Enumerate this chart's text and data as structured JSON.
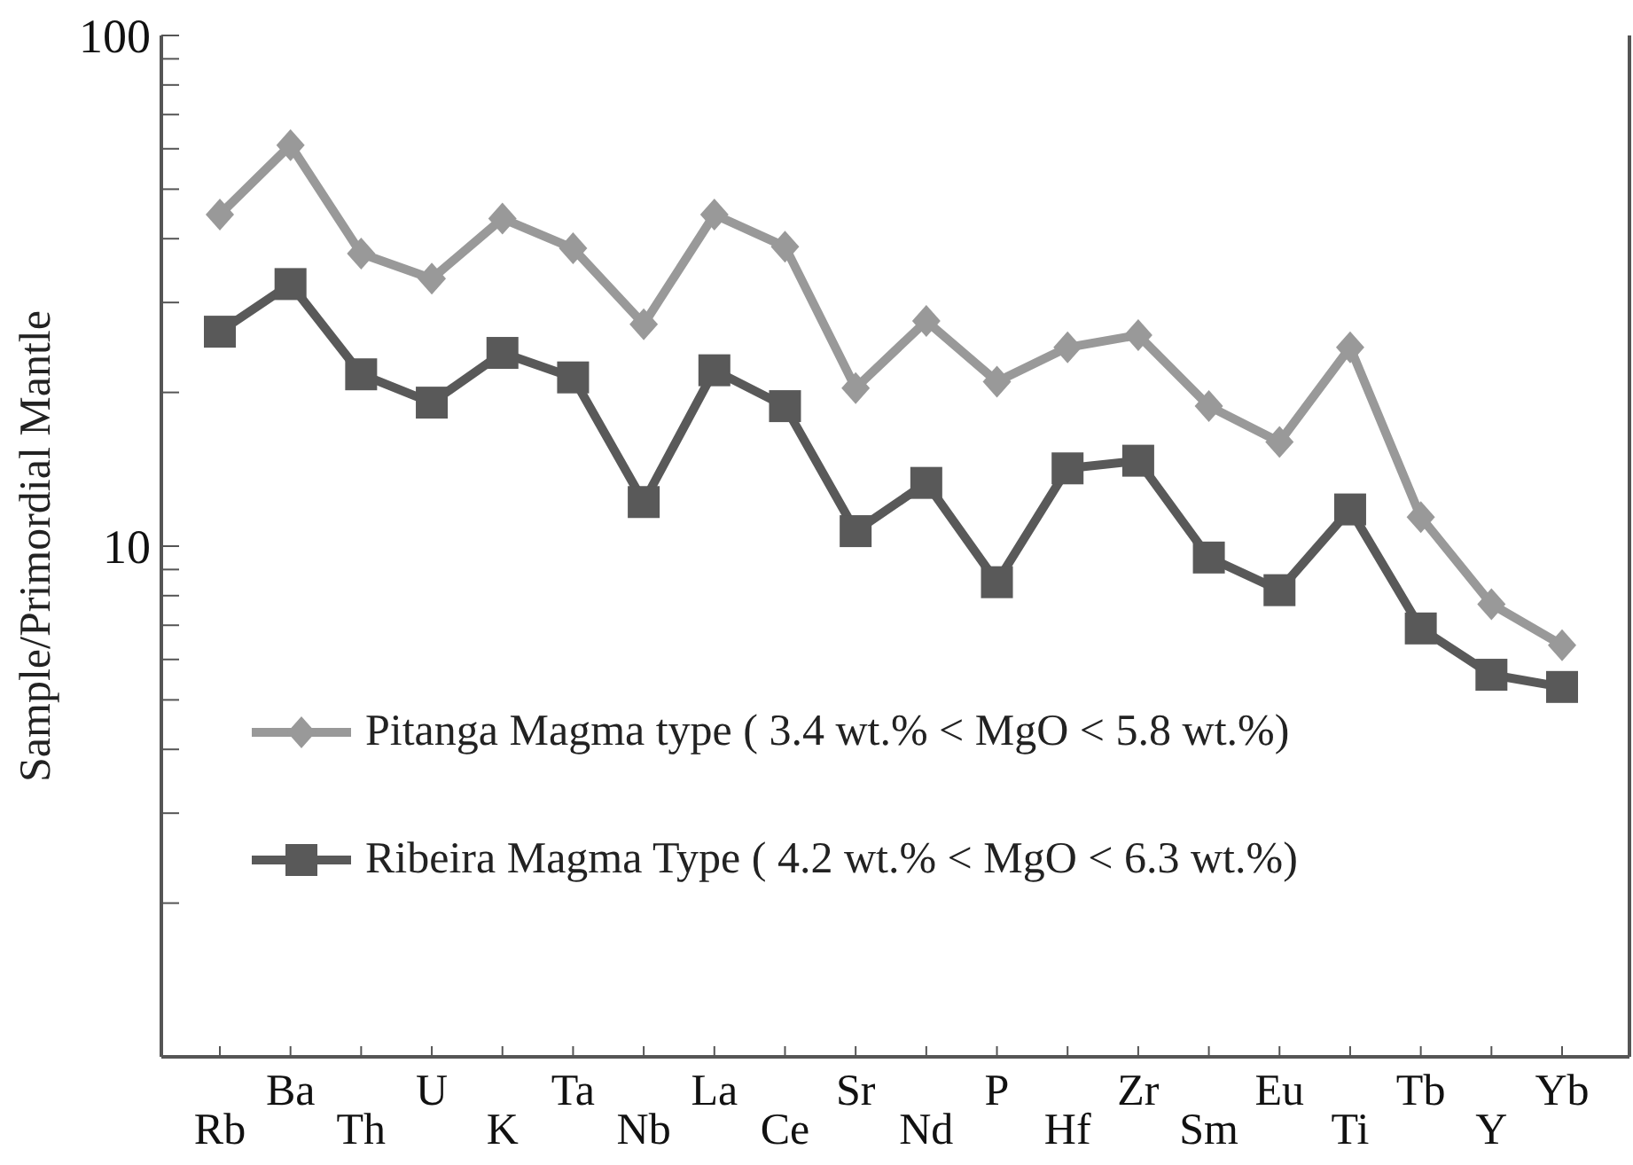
{
  "chart_data": {
    "type": "line",
    "ylabel": "Sample/Primordial Mantle",
    "log": "y",
    "ylim": [
      1,
      100
    ],
    "yticks": [
      {
        "value": 2,
        "label": null
      },
      {
        "value": 3,
        "label": null
      },
      {
        "value": 4,
        "label": null
      },
      {
        "value": 5,
        "label": null
      },
      {
        "value": 6,
        "label": null
      },
      {
        "value": 7,
        "label": null
      },
      {
        "value": 8,
        "label": null
      },
      {
        "value": 9,
        "label": null
      },
      10,
      {
        "value": 20,
        "label": null
      },
      {
        "value": 30,
        "label": null
      },
      {
        "value": 40,
        "label": null
      },
      {
        "value": 50,
        "label": null
      },
      {
        "value": 60,
        "label": null
      },
      {
        "value": 70,
        "label": null
      },
      {
        "value": 80,
        "label": null
      },
      {
        "value": 90,
        "label": null
      },
      100
    ],
    "categories": [
      "Rb",
      "Ba",
      "Th",
      "U",
      "K",
      "Ta",
      "Nb",
      "La",
      "Ce",
      "Sr",
      "Nd",
      "P",
      "Hf",
      "Zr",
      "Sm",
      "Eu",
      "Ti",
      "Tb",
      "Y",
      "Yb"
    ],
    "legend": "left",
    "grid": false,
    "line_style": "solid",
    "series": [
      {
        "name": "Pitanga Magma type ( 3.4 wt.% < MgO < 5.8 wt.%)",
        "color": "#999999",
        "marker": "diamond",
        "values": [
          44.6,
          61,
          37.4,
          33.4,
          43.8,
          38.3,
          27.2,
          44.6,
          38.6,
          20.4,
          27.6,
          21,
          24.5,
          25.9,
          18.8,
          16,
          24.5,
          11.4,
          7.7,
          6.4
        ]
      },
      {
        "name": "Ribeira Magma Type  ( 4.2 wt.% < MgO < 6.3 wt.%)",
        "color": "#595959",
        "marker": "square",
        "values": [
          26.3,
          32.6,
          21.7,
          19.1,
          23.9,
          21.4,
          12.2,
          22.1,
          18.8,
          10.7,
          13.3,
          8.5,
          14.2,
          14.7,
          9.5,
          8.2,
          11.8,
          6.9,
          5.6,
          5.3
        ]
      }
    ]
  }
}
